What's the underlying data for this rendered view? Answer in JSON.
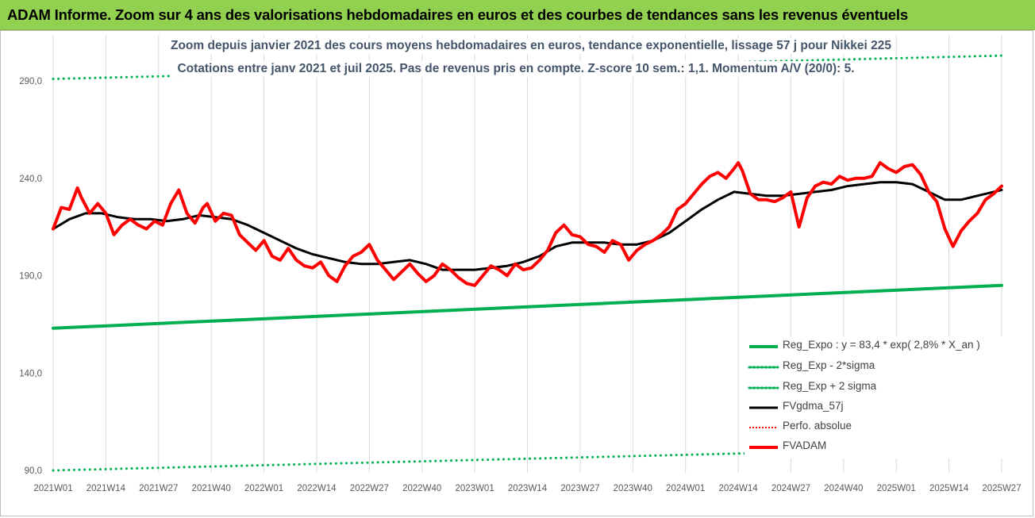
{
  "banner": {
    "title": "ADAM Informe. Zoom sur 4 ans des valorisations hebdomadaires en euros et des courbes de tendances sans les revenus éventuels"
  },
  "chart_data": {
    "type": "line",
    "subtitle_line1": "Zoom depuis janvier 2021 des cours moyens hebdomadaires en euros, tendance exponentielle, lissage 57 j pour Nikkei 225",
    "subtitle_line2": "Cotations entre janv 2021 et juil 2025. Pas de revenus pris en compte. Z-score 10 sem.: 1,1. Momentum A/V (20/0): 5.",
    "ylim": [
      90,
      300
    ],
    "y_ticks": [
      "90,0",
      "140,0",
      "190,0",
      "240,0",
      "290,0"
    ],
    "y_tick_values": [
      90,
      140,
      190,
      240,
      290
    ],
    "x_ticks": [
      "2021W01",
      "2021W14",
      "2021W27",
      "2021W40",
      "2022W01",
      "2022W14",
      "2022W27",
      "2022W40",
      "2023W01",
      "2023W14",
      "2023W27",
      "2023W40",
      "2024W01",
      "2024W14",
      "2024W27",
      "2024W40",
      "2025W01",
      "2025W14",
      "2025W27"
    ],
    "x_tick_weeks": [
      0,
      13,
      26,
      39,
      52,
      65,
      78,
      91,
      104,
      117,
      130,
      143,
      156,
      169,
      182,
      195,
      208,
      221,
      234
    ],
    "x_range_weeks": [
      0,
      234
    ],
    "grid": "vertical",
    "legend_position": "bottom-right",
    "series": [
      {
        "name": "Reg_Expo : y = 83,4 * exp( 2,8% *  X_an )",
        "color": "#00b050",
        "style": "solid",
        "width": 4,
        "weeks": [
          0,
          234
        ],
        "values": [
          163,
          185
        ]
      },
      {
        "name": "Reg_Exp - 2*sigma",
        "color": "#00b050",
        "style": "dotted",
        "width": 3,
        "weeks": [
          0,
          234
        ],
        "values": [
          90,
          102
        ]
      },
      {
        "name": "Reg_Exp + 2 sigma",
        "color": "#00b050",
        "style": "dotted",
        "width": 3,
        "weeks": [
          0,
          234
        ],
        "values": [
          291,
          303
        ]
      },
      {
        "name": "FVgdma_57j",
        "color": "#000000",
        "style": "solid",
        "width": 3,
        "weeks": [
          0,
          4,
          8,
          12,
          16,
          20,
          24,
          28,
          32,
          36,
          40,
          44,
          48,
          52,
          56,
          60,
          64,
          68,
          72,
          76,
          80,
          84,
          88,
          92,
          96,
          100,
          104,
          108,
          112,
          116,
          120,
          124,
          128,
          132,
          136,
          140,
          144,
          148,
          152,
          156,
          160,
          164,
          168,
          172,
          176,
          180,
          184,
          188,
          192,
          196,
          200,
          204,
          208,
          212,
          216,
          220,
          224,
          228,
          232,
          234
        ],
        "values": [
          214,
          219,
          222,
          222,
          220,
          219,
          219,
          218,
          219,
          221,
          220,
          219,
          216,
          212,
          208,
          204,
          201,
          199,
          197,
          196,
          196,
          197,
          198,
          196,
          193,
          193,
          193,
          194,
          195,
          197,
          200,
          205,
          207,
          207,
          207,
          206,
          206,
          208,
          212,
          218,
          224,
          229,
          233,
          232,
          231,
          231,
          232,
          233,
          234,
          236,
          237,
          238,
          238,
          237,
          233,
          229,
          229,
          231,
          233,
          234
        ]
      },
      {
        "name": "Perfo. absolue",
        "color": "#ff0000",
        "style": "dotted",
        "width": 2,
        "weeks": [],
        "values": []
      },
      {
        "name": "FVADAM",
        "color": "#ff0000",
        "style": "solid",
        "width": 4,
        "weeks": [
          0,
          2,
          4,
          6,
          7,
          9,
          11,
          13,
          15,
          17,
          19,
          21,
          23,
          25,
          27,
          29,
          31,
          33,
          35,
          37,
          38,
          40,
          42,
          44,
          46,
          48,
          50,
          52,
          54,
          56,
          58,
          60,
          62,
          64,
          66,
          68,
          70,
          72,
          74,
          76,
          78,
          80,
          82,
          84,
          86,
          88,
          90,
          92,
          94,
          96,
          98,
          100,
          102,
          104,
          106,
          108,
          110,
          112,
          114,
          116,
          118,
          120,
          122,
          124,
          126,
          128,
          130,
          132,
          134,
          136,
          138,
          140,
          142,
          144,
          146,
          148,
          150,
          152,
          154,
          156,
          158,
          160,
          162,
          164,
          166,
          168,
          169,
          170,
          172,
          174,
          176,
          178,
          180,
          182,
          184,
          186,
          188,
          190,
          192,
          194,
          196,
          198,
          200,
          202,
          204,
          206,
          208,
          210,
          212,
          214,
          216,
          218,
          220,
          222,
          224,
          226,
          228,
          230,
          232,
          234
        ],
        "values": [
          214,
          225,
          224,
          235,
          230,
          222,
          227,
          222,
          211,
          216,
          219,
          216,
          214,
          218,
          216,
          227,
          234,
          222,
          217,
          225,
          227,
          218,
          222,
          221,
          211,
          207,
          203,
          208,
          200,
          198,
          204,
          198,
          195,
          194,
          197,
          190,
          187,
          195,
          200,
          202,
          206,
          198,
          193,
          188,
          192,
          196,
          191,
          187,
          190,
          196,
          193,
          189,
          186,
          185,
          190,
          195,
          193,
          190,
          196,
          193,
          194,
          198,
          203,
          212,
          216,
          211,
          210,
          206,
          205,
          202,
          208,
          206,
          198,
          203,
          206,
          208,
          211,
          215,
          224,
          227,
          232,
          237,
          241,
          243,
          240,
          245,
          248,
          244,
          232,
          229,
          229,
          228,
          230,
          233,
          215,
          230,
          236,
          238,
          237,
          241,
          239,
          240,
          240,
          241,
          248,
          245,
          243,
          246,
          247,
          242,
          233,
          228,
          214,
          205,
          213,
          218,
          222,
          229,
          232,
          236
        ]
      }
    ]
  }
}
